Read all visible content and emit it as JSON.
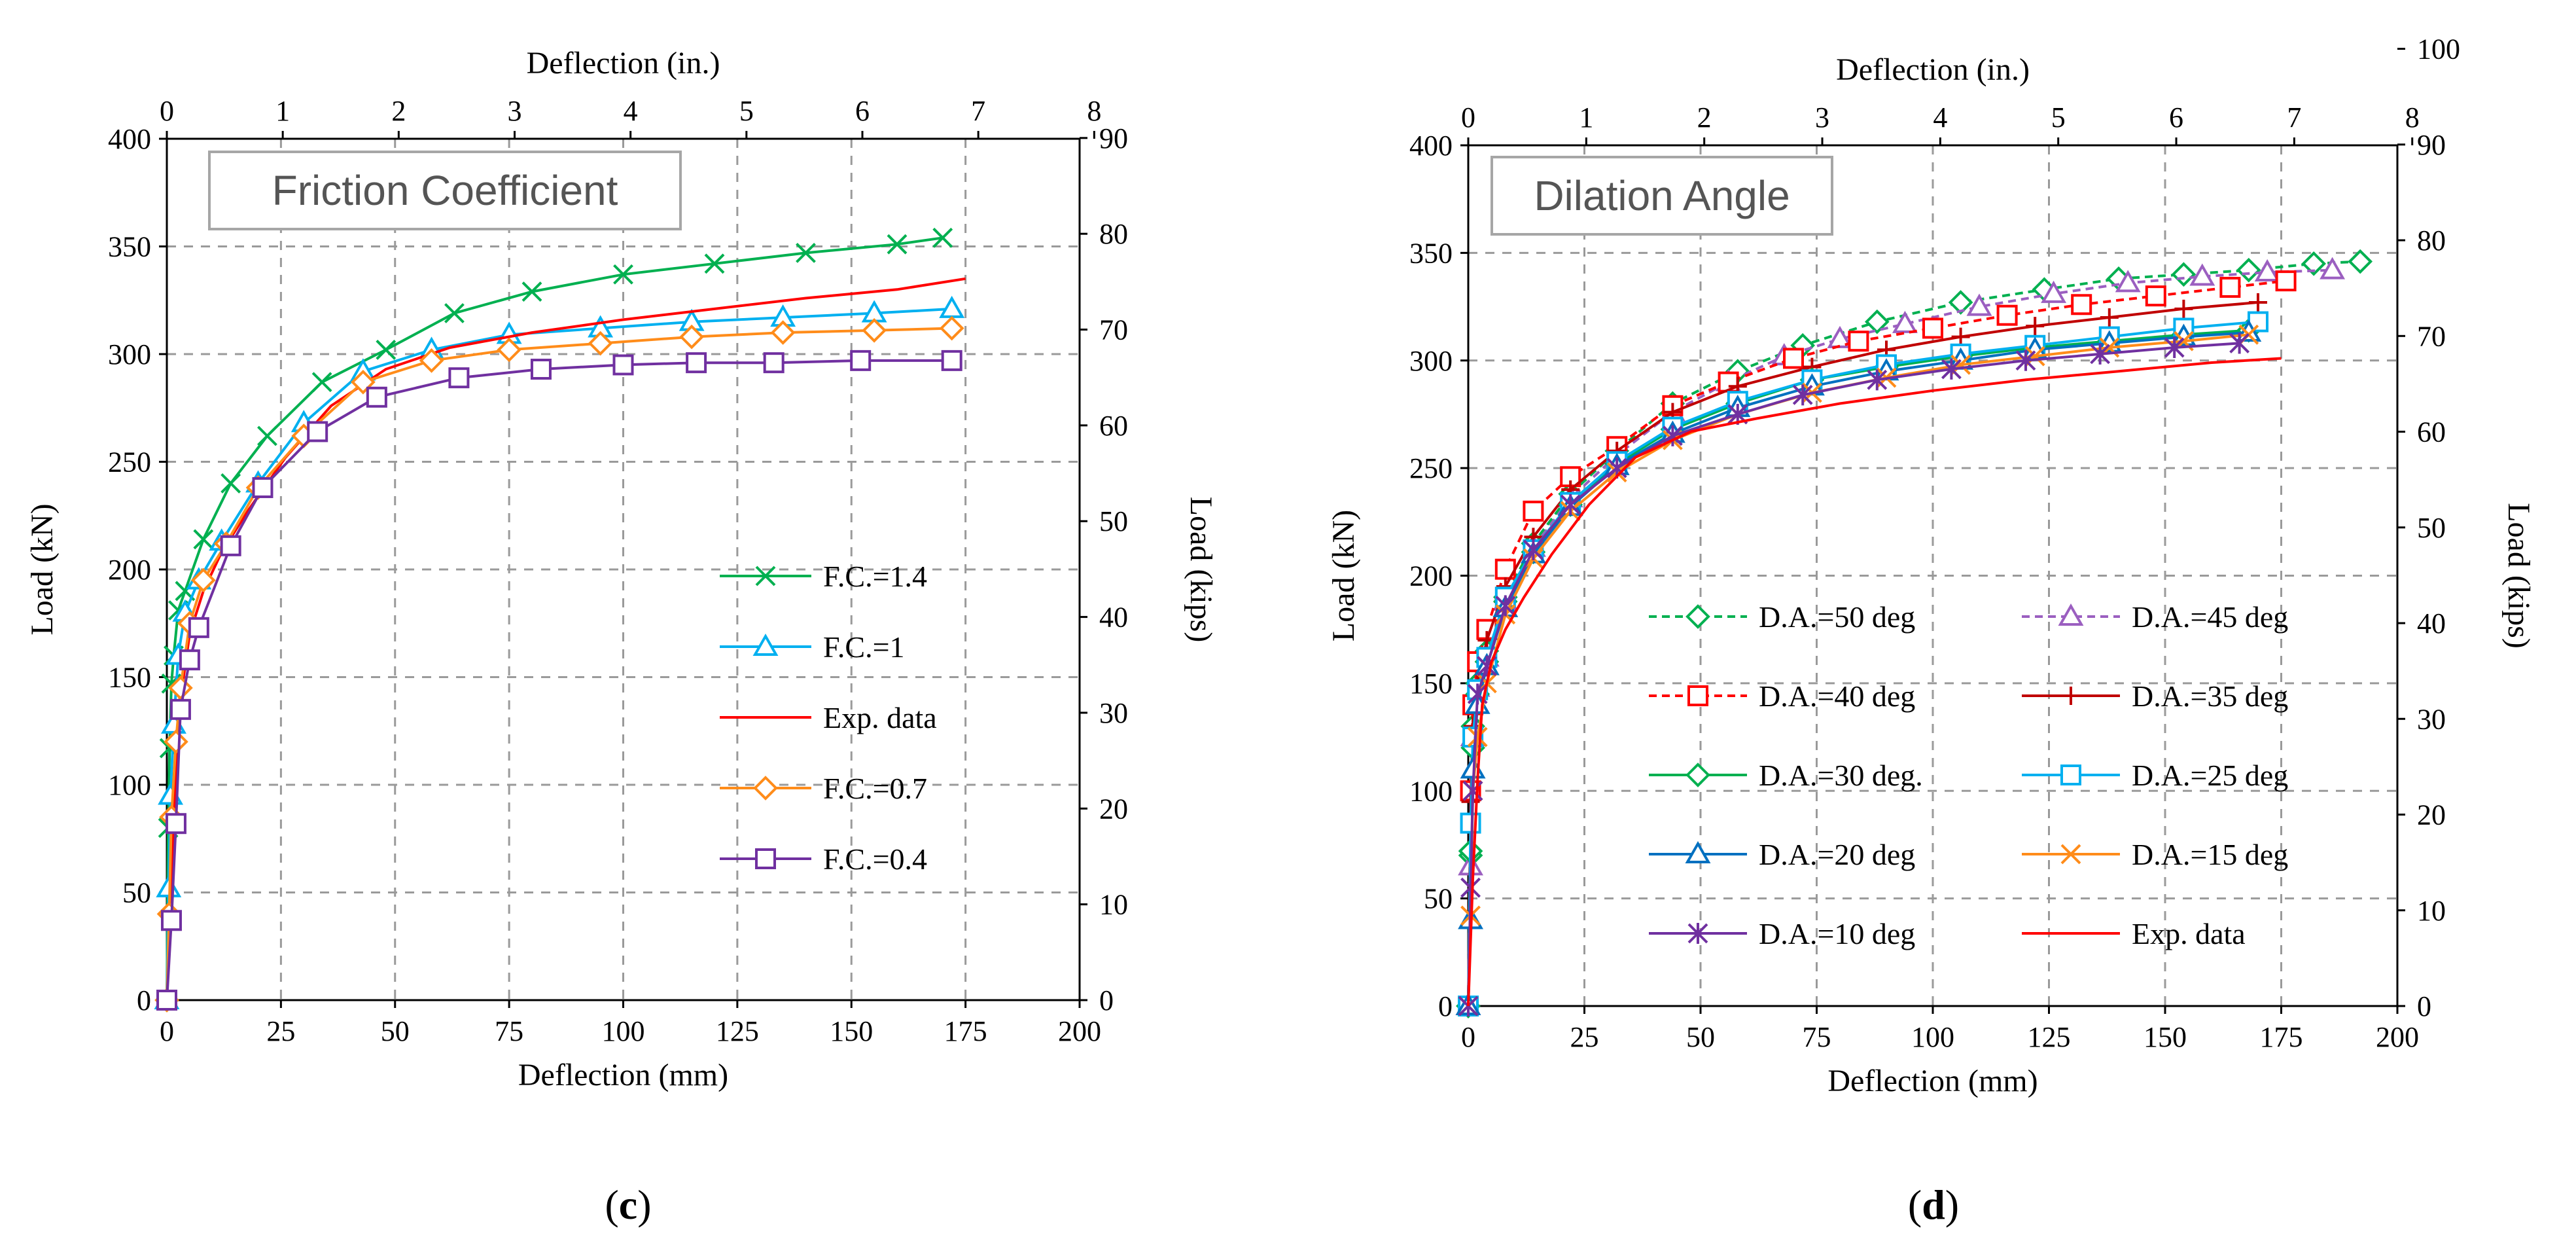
{
  "chart_data": [
    {
      "type": "line",
      "panel_label": "c",
      "inset_title": "Friction Coefficient",
      "xlabel": "Deflection (mm)",
      "ylabel": "Load (kN)",
      "x2label": "Deflection (in.)",
      "y2label": "Load (kips)",
      "xlim": [
        0,
        200
      ],
      "ylim": [
        0,
        400
      ],
      "x2lim": [
        0,
        8
      ],
      "y2lim": [
        0,
        90
      ],
      "xticks": [
        "0",
        "25",
        "50",
        "75",
        "100",
        "125",
        "150",
        "175",
        "200"
      ],
      "yticks": [
        "0",
        "50",
        "100",
        "150",
        "200",
        "250",
        "300",
        "350",
        "400"
      ],
      "x2ticks": [
        "0",
        "1",
        "2",
        "3",
        "4",
        "5",
        "6",
        "7",
        "8"
      ],
      "y2ticks": [
        "0",
        "10",
        "20",
        "30",
        "40",
        "50",
        "60",
        "70",
        "80",
        "90"
      ],
      "grid": true,
      "legend_position": "lower-right",
      "series": [
        {
          "name": "F.C.=1.4",
          "color": "#00b050",
          "marker": "x",
          "x": [
            0,
            0.3,
            0.6,
            1,
            1.5,
            2.5,
            4,
            8,
            14,
            22,
            34,
            48,
            63,
            80,
            100,
            120,
            140,
            160,
            170
          ],
          "y": [
            0,
            80,
            117,
            147,
            160,
            181,
            190,
            214,
            240,
            262,
            287,
            302,
            319,
            329,
            337,
            342,
            347,
            351,
            354
          ]
        },
        {
          "name": "F.C.=1",
          "color": "#00b0f0",
          "marker": "triangle",
          "x": [
            0,
            0.4,
            0.8,
            1.5,
            2.5,
            4,
            7,
            12,
            20,
            30,
            43,
            58,
            75,
            95,
            115,
            135,
            155,
            172
          ],
          "y": [
            0,
            52,
            95,
            128,
            160,
            180,
            195,
            213,
            240,
            268,
            292,
            302,
            309,
            312,
            315,
            317,
            319,
            321
          ]
        },
        {
          "name": "Exp. data",
          "color": "#ff0000",
          "marker": "none",
          "x": [
            0,
            1,
            2,
            3,
            5,
            8,
            12,
            18,
            26,
            36,
            48,
            62,
            80,
            100,
            120,
            140,
            160,
            175
          ],
          "y": [
            0,
            60,
            105,
            140,
            170,
            190,
            208,
            228,
            252,
            276,
            293,
            303,
            310,
            316,
            321,
            326,
            330,
            335
          ]
        },
        {
          "name": "F.C.=0.7",
          "color": "#ff8c1a",
          "marker": "diamond",
          "x": [
            0,
            0.5,
            1,
            2,
            3,
            5,
            8,
            13,
            20,
            30,
            43,
            58,
            75,
            95,
            115,
            135,
            155,
            172
          ],
          "y": [
            0,
            40,
            85,
            120,
            145,
            175,
            195,
            212,
            238,
            262,
            287,
            297,
            302,
            305,
            308,
            310,
            311,
            312
          ]
        },
        {
          "name": "F.C.=0.4",
          "color": "#7030a0",
          "marker": "square",
          "x": [
            0,
            1,
            2,
            3,
            5,
            7,
            14,
            21,
            33,
            46,
            64,
            82,
            100,
            116,
            133,
            152,
            172
          ],
          "y": [
            0,
            37,
            82,
            135,
            158,
            173,
            211,
            238,
            264,
            280,
            289,
            293,
            295,
            296,
            296,
            297,
            297
          ]
        }
      ]
    },
    {
      "type": "line",
      "panel_label": "d",
      "inset_title": "Dilation Angle",
      "xlabel": "Deflection (mm)",
      "ylabel": "Load (kN)",
      "x2label": "Deflection (in.)",
      "y2label": "Load (kips)",
      "xlim": [
        0,
        200
      ],
      "ylim": [
        0,
        400
      ],
      "x2lim": [
        0,
        8
      ],
      "y2lim": [
        0,
        100
      ],
      "xticks": [
        "0",
        "25",
        "50",
        "75",
        "100",
        "125",
        "150",
        "175",
        "200"
      ],
      "yticks": [
        "0",
        "50",
        "100",
        "150",
        "200",
        "250",
        "300",
        "350",
        "400"
      ],
      "x2ticks": [
        "0",
        "1",
        "2",
        "3",
        "4",
        "5",
        "6",
        "7",
        "8"
      ],
      "y2ticks": [
        "0",
        "10",
        "20",
        "30",
        "40",
        "50",
        "60",
        "70",
        "80",
        "90",
        "100"
      ],
      "grid": true,
      "legend_position": "lower-right",
      "series": [
        {
          "name": "D.A.=50 deg",
          "color": "#00b050",
          "marker": "diamond",
          "dash": true,
          "x": [
            0,
            0.5,
            1,
            2,
            4,
            8,
            14,
            22,
            32,
            44,
            58,
            72,
            88,
            106,
            124,
            140,
            154,
            168,
            182,
            192
          ],
          "y": [
            0,
            70,
            130,
            150,
            165,
            190,
            215,
            238,
            258,
            280,
            295,
            307,
            318,
            327,
            333,
            338,
            340,
            342,
            345,
            346
          ]
        },
        {
          "name": "D.A.=45 deg",
          "color": "#9b5fc0",
          "marker": "triangle",
          "dash": true,
          "x": [
            0,
            0.5,
            1,
            2,
            4,
            8,
            14,
            22,
            32,
            44,
            56,
            68,
            80,
            94,
            110,
            126,
            142,
            158,
            172,
            186
          ],
          "y": [
            0,
            65,
            125,
            148,
            162,
            188,
            213,
            236,
            256,
            276,
            290,
            302,
            310,
            317,
            325,
            331,
            336,
            339,
            341,
            342
          ]
        },
        {
          "name": "D.A.=40 deg",
          "color": "#ff0000",
          "marker": "square",
          "dash": true,
          "x": [
            0,
            0.5,
            1,
            2,
            4,
            8,
            14,
            22,
            32,
            44,
            56,
            70,
            84,
            100,
            116,
            132,
            148,
            164,
            176
          ],
          "y": [
            0,
            100,
            140,
            160,
            175,
            203,
            230,
            246,
            260,
            279,
            290,
            301,
            309,
            315,
            321,
            326,
            330,
            334,
            337
          ]
        },
        {
          "name": "D.A.=35 deg",
          "color": "#c00000",
          "marker": "plus",
          "dash": false,
          "x": [
            0,
            0.5,
            1,
            2,
            4,
            8,
            14,
            22,
            32,
            44,
            58,
            74,
            90,
            106,
            122,
            138,
            154,
            170
          ],
          "y": [
            0,
            95,
            130,
            150,
            170,
            195,
            218,
            240,
            258,
            276,
            288,
            297,
            305,
            311,
            316,
            320,
            324,
            327
          ]
        },
        {
          "name": "D.A.=30 deg.",
          "color": "#00b050",
          "marker": "diamond",
          "dash": false,
          "x": [
            0,
            0.5,
            1,
            2,
            4,
            8,
            14,
            22,
            32,
            44,
            58,
            74,
            90,
            106,
            122,
            138,
            154,
            168
          ],
          "y": [
            0,
            72,
            120,
            145,
            160,
            188,
            211,
            233,
            252,
            268,
            280,
            291,
            297,
            302,
            306,
            309,
            312,
            314
          ]
        },
        {
          "name": "D.A.=25 deg",
          "color": "#00b0f0",
          "marker": "square",
          "dash": false,
          "x": [
            0,
            0.5,
            1,
            2,
            4,
            8,
            14,
            22,
            32,
            44,
            58,
            74,
            90,
            106,
            122,
            138,
            154,
            170
          ],
          "y": [
            0,
            85,
            125,
            147,
            162,
            190,
            212,
            234,
            253,
            269,
            281,
            291,
            298,
            303,
            307,
            311,
            315,
            318
          ]
        },
        {
          "name": "D.A.=20 deg",
          "color": "#0070c0",
          "marker": "triangle",
          "dash": false,
          "x": [
            0,
            0.5,
            1,
            2,
            4,
            8,
            14,
            22,
            32,
            44,
            58,
            74,
            90,
            106,
            122,
            138,
            154,
            168
          ],
          "y": [
            0,
            40,
            110,
            140,
            158,
            185,
            210,
            232,
            251,
            266,
            278,
            288,
            295,
            300,
            305,
            308,
            311,
            313
          ]
        },
        {
          "name": "D.A.=15 deg",
          "color": "#ff8c1a",
          "marker": "x",
          "dash": false,
          "x": [
            0,
            0.5,
            1,
            2,
            4,
            8,
            14,
            22,
            32,
            44,
            58,
            74,
            90,
            106,
            122,
            138,
            154,
            168
          ],
          "y": [
            0,
            42,
            100,
            125,
            150,
            182,
            208,
            230,
            248,
            263,
            275,
            285,
            292,
            298,
            302,
            306,
            309,
            312
          ]
        },
        {
          "name": "D.A.=10 deg",
          "color": "#7030a0",
          "marker": "asterisk",
          "dash": false,
          "x": [
            0,
            0.5,
            1,
            2,
            4,
            8,
            14,
            22,
            32,
            44,
            58,
            72,
            88,
            104,
            120,
            136,
            152,
            166
          ],
          "y": [
            0,
            55,
            100,
            145,
            158,
            186,
            212,
            233,
            250,
            265,
            275,
            284,
            291,
            296,
            300,
            303,
            306,
            308
          ]
        },
        {
          "name": "Exp. data",
          "color": "#ff0000",
          "marker": "none",
          "dash": false,
          "x": [
            0,
            1,
            2,
            3,
            5,
            8,
            12,
            18,
            26,
            36,
            48,
            62,
            80,
            100,
            120,
            140,
            160,
            175
          ],
          "y": [
            0,
            60,
            105,
            140,
            160,
            175,
            190,
            210,
            233,
            255,
            267,
            273,
            280,
            286,
            291,
            295,
            299,
            301
          ]
        }
      ]
    }
  ]
}
